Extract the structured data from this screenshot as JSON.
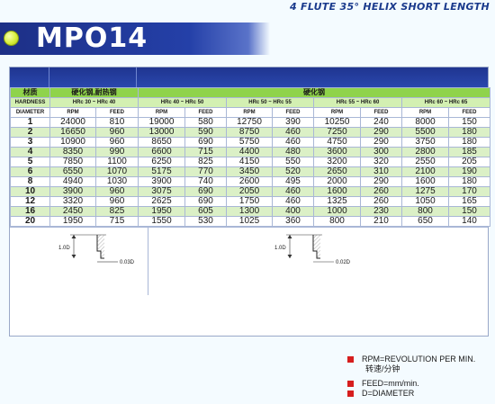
{
  "header": {
    "subtitle": "4 FLUTE 35° HELIX SHORT LENGTH",
    "model": "MPO14"
  },
  "table": {
    "material_label": "材质",
    "hardness_label": "HARDNESS",
    "diameter_label": "DIAMETER",
    "rpm_label": "RPM",
    "feed_label": "FEED",
    "groups": [
      {
        "material": "硬化钢,耐热钢",
        "hardness": "HRc 30 ~ HRc 40"
      },
      {
        "material": "硬化钢",
        "hardness": "HRc 40 ~ HRc 50"
      },
      {
        "material": "",
        "hardness": "HRc 50 ~ HRc 55"
      },
      {
        "material": "",
        "hardness": "HRc 55 ~ HRc 60"
      },
      {
        "material": "",
        "hardness": "HRc 60 ~ HRc 65"
      }
    ],
    "rows": [
      {
        "d": "1",
        "v": [
          "24000",
          "810",
          "19000",
          "580",
          "12750",
          "390",
          "10250",
          "240",
          "8000",
          "150"
        ]
      },
      {
        "d": "2",
        "v": [
          "16650",
          "960",
          "13000",
          "590",
          "8750",
          "460",
          "7250",
          "290",
          "5500",
          "180"
        ]
      },
      {
        "d": "3",
        "v": [
          "10900",
          "960",
          "8650",
          "690",
          "5750",
          "460",
          "4750",
          "290",
          "3750",
          "180"
        ]
      },
      {
        "d": "4",
        "v": [
          "8350",
          "990",
          "6600",
          "715",
          "4400",
          "480",
          "3600",
          "300",
          "2800",
          "185"
        ]
      },
      {
        "d": "5",
        "v": [
          "7850",
          "1100",
          "6250",
          "825",
          "4150",
          "550",
          "3200",
          "320",
          "2550",
          "205"
        ]
      },
      {
        "d": "6",
        "v": [
          "6550",
          "1070",
          "5175",
          "770",
          "3450",
          "520",
          "2650",
          "310",
          "2100",
          "190"
        ]
      },
      {
        "d": "8",
        "v": [
          "4940",
          "1030",
          "3900",
          "740",
          "2600",
          "495",
          "2000",
          "290",
          "1600",
          "180"
        ]
      },
      {
        "d": "10",
        "v": [
          "3900",
          "960",
          "3075",
          "690",
          "2050",
          "460",
          "1600",
          "260",
          "1275",
          "170"
        ]
      },
      {
        "d": "12",
        "v": [
          "3320",
          "960",
          "2625",
          "690",
          "1750",
          "460",
          "1325",
          "260",
          "1050",
          "165"
        ]
      },
      {
        "d": "16",
        "v": [
          "2450",
          "825",
          "1950",
          "605",
          "1300",
          "400",
          "1000",
          "230",
          "800",
          "150"
        ]
      },
      {
        "d": "20",
        "v": [
          "1950",
          "715",
          "1550",
          "530",
          "1025",
          "360",
          "800",
          "210",
          "650",
          "140"
        ]
      }
    ]
  },
  "drawings": [
    {
      "depth": "1.0D",
      "offset": "0.03D"
    },
    {
      "depth": "1.0D",
      "offset": "0.02D"
    }
  ],
  "legend": {
    "rpm": "RPM=REVOLUTION PER MIN.",
    "rpm_cn": "转速/分钟",
    "feed": "FEED=mm/min.",
    "diameter": "D=DIAMETER",
    "marker_color": "#d61e1e"
  }
}
